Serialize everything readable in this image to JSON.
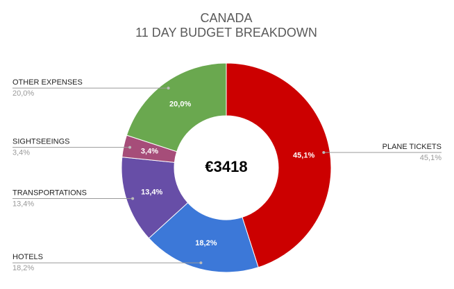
{
  "chart_data": {
    "type": "donut",
    "title": "CANADA",
    "subtitle": "11 DAY BUDGET BREAKDOWN",
    "center_label": "€3418",
    "categories": [
      "PLANE TICKETS",
      "HOTELS",
      "TRANSPORTATIONS",
      "SIGHTSEEINGS",
      "OTHER EXPENSES"
    ],
    "values": [
      45.1,
      18.2,
      13.4,
      3.4,
      20.0
    ],
    "value_labels": [
      "45,1%",
      "18,2%",
      "13,4%",
      "3,4%",
      "20,0%"
    ],
    "colors": [
      "#cc0000",
      "#3c78d8",
      "#674ea7",
      "#a64d79",
      "#6aa84f"
    ]
  }
}
